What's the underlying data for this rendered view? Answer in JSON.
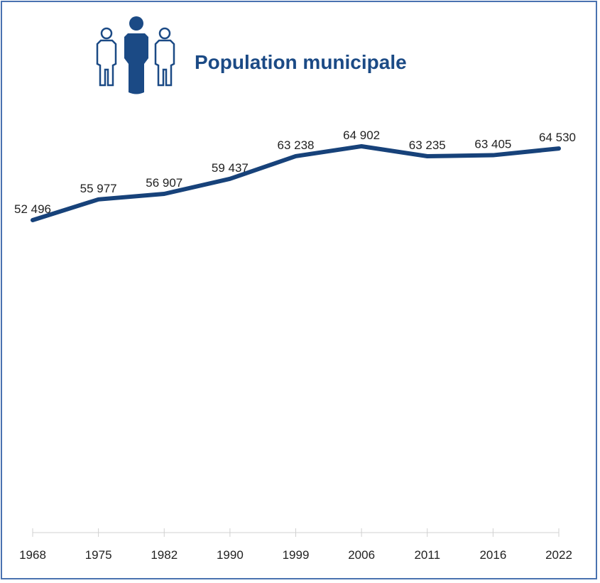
{
  "header": {
    "title": "Population municipale",
    "icon": "people-icon"
  },
  "colors": {
    "line": "#17427a",
    "title": "#1b4a85",
    "border": "#4a72b0",
    "text": "#222222",
    "axis": "#d0d0d0"
  },
  "chart_data": {
    "type": "line",
    "title": "Population municipale",
    "categories": [
      "1968",
      "1975",
      "1982",
      "1990",
      "1999",
      "2006",
      "2011",
      "2016",
      "2022"
    ],
    "values": [
      52496,
      55977,
      56907,
      59437,
      63238,
      64902,
      63235,
      63405,
      64530
    ],
    "value_labels": [
      "52 496",
      "55 977",
      "56 907",
      "59 437",
      "63 238",
      "64 902",
      "63 235",
      "63 405",
      "64 530"
    ],
    "xlabel": "",
    "ylabel": "",
    "ylim": [
      0,
      77000
    ],
    "grid": false,
    "legend": "none"
  }
}
